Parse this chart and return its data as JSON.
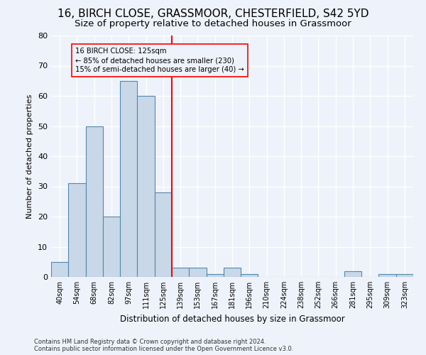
{
  "title": "16, BIRCH CLOSE, GRASSMOOR, CHESTERFIELD, S42 5YD",
  "subtitle": "Size of property relative to detached houses in Grassmoor",
  "xlabel": "Distribution of detached houses by size in Grassmoor",
  "ylabel": "Number of detached properties",
  "categories": [
    "40sqm",
    "54sqm",
    "68sqm",
    "82sqm",
    "97sqm",
    "111sqm",
    "125sqm",
    "139sqm",
    "153sqm",
    "167sqm",
    "181sqm",
    "196sqm",
    "210sqm",
    "224sqm",
    "238sqm",
    "252sqm",
    "266sqm",
    "281sqm",
    "295sqm",
    "309sqm",
    "323sqm"
  ],
  "values": [
    5,
    31,
    50,
    20,
    65,
    60,
    28,
    3,
    3,
    1,
    3,
    1,
    0,
    0,
    0,
    0,
    0,
    2,
    0,
    1,
    1
  ],
  "bar_color": "#c8d8e8",
  "bar_edge_color": "#5588aa",
  "redline_index": 6,
  "redline_label": "16 BIRCH CLOSE: 125sqm",
  "annotation_line1": "← 85% of detached houses are smaller (230)",
  "annotation_line2": "15% of semi-detached houses are larger (40) →",
  "ylim": [
    0,
    80
  ],
  "yticks": [
    0,
    10,
    20,
    30,
    40,
    50,
    60,
    70,
    80
  ],
  "footer1": "Contains HM Land Registry data © Crown copyright and database right 2024.",
  "footer2": "Contains public sector information licensed under the Open Government Licence v3.0.",
  "background_color": "#eef2fa",
  "grid_color": "#ffffff",
  "title_fontsize": 11,
  "subtitle_fontsize": 9.5,
  "bar_linewidth": 0.8
}
